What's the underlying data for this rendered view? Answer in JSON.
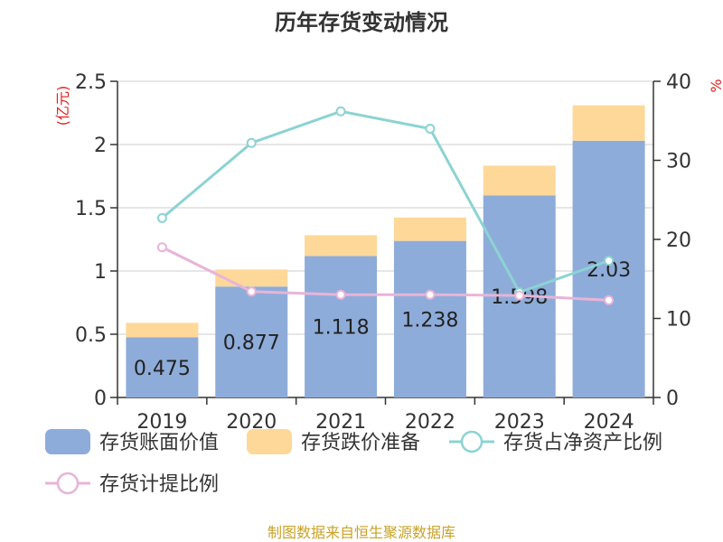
{
  "chart_data": {
    "type": "bar",
    "title": "历年存货变动情况",
    "left_axis_unit": "(亿元)",
    "right_axis_unit": "%",
    "categories": [
      "2019",
      "2020",
      "2021",
      "2022",
      "2023",
      "2024"
    ],
    "left_ylim": [
      0,
      2.5
    ],
    "left_ticks": [
      "0",
      "0.5",
      "1",
      "1.5",
      "2",
      "2.5"
    ],
    "left_tick_values": [
      0,
      0.5,
      1,
      1.5,
      2,
      2.5
    ],
    "right_ylim": [
      0,
      40
    ],
    "right_ticks": [
      "0",
      "10",
      "20",
      "30",
      "40"
    ],
    "right_tick_values": [
      0,
      10,
      20,
      30,
      40
    ],
    "grid": true,
    "legend_position": "bottom",
    "series": [
      {
        "name": "存货账面价值",
        "kind": "bar",
        "axis": "left",
        "color": "#8eacd9",
        "values": [
          0.475,
          0.877,
          1.118,
          1.238,
          1.598,
          2.03
        ],
        "labels": [
          "0.475",
          "0.877",
          "1.118",
          "1.238",
          "1.598",
          "2.03"
        ]
      },
      {
        "name": "存货跌价准备",
        "kind": "bar-stacked",
        "axis": "left",
        "color": "#fdd898",
        "values": [
          0.115,
          0.135,
          0.165,
          0.185,
          0.235,
          0.28
        ]
      },
      {
        "name": "存货占净资产比例",
        "kind": "line",
        "axis": "right",
        "color": "#8cd3d3",
        "values": [
          22.7,
          32.2,
          36.2,
          34.0,
          13.3,
          17.3
        ]
      },
      {
        "name": "存货计提比例",
        "kind": "line",
        "axis": "right",
        "color": "#e8b4d8",
        "values": [
          19.0,
          13.4,
          13.0,
          13.0,
          12.9,
          12.3
        ]
      }
    ],
    "source": "制图数据来自恒生聚源数据库"
  }
}
